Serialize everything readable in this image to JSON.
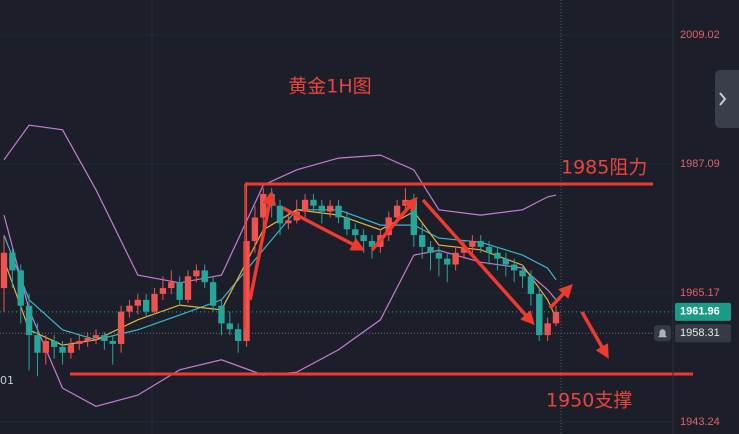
{
  "chart_data": {
    "type": "candlestick",
    "title": "黄金1H图",
    "annotations": [
      "1985阻力",
      "1950支撑"
    ],
    "edge_label": "01",
    "up_color": "#ef5350",
    "down_color": "#26a69a",
    "ylim": [
      1941.19,
      2014.97
    ],
    "yticks": [
      1943.24,
      1965.17,
      1987.09,
      2009.02
    ],
    "last_price": 1961.96,
    "crosshair_price": 1958.31,
    "candles": [
      [
        1966,
        1975,
        1962,
        1972
      ],
      [
        1972,
        1973,
        1966,
        1969
      ],
      [
        1969,
        1970,
        1960,
        1963
      ],
      [
        1963,
        1965,
        1952,
        1958
      ],
      [
        1958,
        1960,
        1951,
        1955
      ],
      [
        1955,
        1958,
        1953,
        1957
      ],
      [
        1957,
        1958,
        1954,
        1956
      ],
      [
        1956,
        1957,
        1953,
        1955
      ],
      [
        1955,
        1957.5,
        1954,
        1956.5
      ],
      [
        1956.5,
        1958,
        1955.5,
        1957
      ],
      [
        1957,
        1958.5,
        1956,
        1957.5
      ],
      [
        1957.5,
        1959,
        1956.5,
        1958
      ],
      [
        1958,
        1958.5,
        1955.5,
        1957
      ],
      [
        1957,
        1958,
        1953,
        1956.5
      ],
      [
        1956.5,
        1963,
        1955,
        1962
      ],
      [
        1962,
        1964,
        1961,
        1963
      ],
      [
        1963,
        1965,
        1961.5,
        1964
      ],
      [
        1964,
        1965,
        1961,
        1962
      ],
      [
        1962,
        1966,
        1961.5,
        1965
      ],
      [
        1965,
        1968,
        1964,
        1966
      ],
      [
        1966,
        1969,
        1965,
        1967
      ],
      [
        1967,
        1968,
        1963,
        1964
      ],
      [
        1964,
        1969,
        1963.5,
        1968
      ],
      [
        1968,
        1970,
        1967,
        1969
      ],
      [
        1969,
        1970,
        1966,
        1967
      ],
      [
        1967,
        1968,
        1962,
        1963
      ],
      [
        1963,
        1964,
        1958,
        1960
      ],
      [
        1960,
        1962,
        1958,
        1959
      ],
      [
        1959,
        1960,
        1955,
        1957
      ],
      [
        1957,
        1984,
        1956,
        1974
      ],
      [
        1974,
        1980,
        1972,
        1978
      ],
      [
        1978,
        1983,
        1976,
        1982
      ],
      [
        1982,
        1983,
        1978,
        1980
      ],
      [
        1980,
        1981,
        1975,
        1977
      ],
      [
        1977,
        1979,
        1976,
        1977.5
      ],
      [
        1977.5,
        1981,
        1977,
        1979
      ],
      [
        1979,
        1982,
        1978,
        1981
      ],
      [
        1981,
        1982,
        1979,
        1980
      ],
      [
        1980,
        1981,
        1977,
        1979
      ],
      [
        1979,
        1981,
        1978,
        1980
      ],
      [
        1980,
        1981,
        1977,
        1978
      ],
      [
        1978,
        1979,
        1975,
        1976
      ],
      [
        1976,
        1977,
        1973,
        1975
      ],
      [
        1975,
        1976,
        1972,
        1974
      ],
      [
        1974,
        1975,
        1971,
        1973
      ],
      [
        1973,
        1976,
        1972,
        1975
      ],
      [
        1975,
        1979,
        1974,
        1978
      ],
      [
        1978,
        1981,
        1977,
        1980
      ],
      [
        1980,
        1983,
        1979,
        1981
      ],
      [
        1981,
        1982,
        1973,
        1975
      ],
      [
        1975,
        1977,
        1971,
        1973
      ],
      [
        1973,
        1974,
        1969,
        1972
      ],
      [
        1972,
        1973,
        1968,
        1971
      ],
      [
        1971,
        1972,
        1967,
        1970
      ],
      [
        1970,
        1973,
        1969,
        1972
      ],
      [
        1972,
        1974,
        1971,
        1973
      ],
      [
        1973,
        1975,
        1971.5,
        1974
      ],
      [
        1974,
        1975,
        1972,
        1973
      ],
      [
        1973,
        1974,
        1970,
        1972
      ],
      [
        1972,
        1973,
        1969,
        1971
      ],
      [
        1971,
        1972,
        1968,
        1970
      ],
      [
        1970,
        1971,
        1967,
        1969
      ],
      [
        1969,
        1970,
        1966,
        1968
      ],
      [
        1968,
        1969,
        1963,
        1965
      ],
      [
        1965,
        1966,
        1957,
        1958
      ],
      [
        1958,
        1961,
        1957,
        1960
      ],
      [
        1960,
        1963,
        1959.5,
        1961.96
      ]
    ],
    "line_x": [
      0,
      3,
      7,
      11,
      16,
      21,
      26,
      31,
      35,
      40,
      45,
      49,
      52,
      57,
      62,
      65,
      66
    ],
    "lines": [
      {
        "color": "#c77ad6",
        "values": [
          1987.8,
          1993.7,
          1992.9,
          1982.7,
          1968.2,
          1966.9,
          1968.2,
          1983.5,
          1986.1,
          1988.1,
          1988.6,
          1986.1,
          1979.3,
          1978.4,
          1979.3,
          1981.5,
          1981.8
        ]
      },
      {
        "color": "#c77ad6",
        "values": [
          1978.4,
          1962.3,
          1949,
          1945.9,
          1947.8,
          1952.1,
          1953.8,
          1951.2,
          1951.7,
          1955.5,
          1960.6,
          1971.6,
          1972.4,
          1970.4,
          1969.4,
          1965.7,
          1964
        ]
      },
      {
        "color": "#3fb6c9",
        "values": [
          1975,
          1964,
          1958.9,
          1957.2,
          1958.9,
          1961.4,
          1964,
          1972.5,
          1979.3,
          1979.3,
          1976.7,
          1976.7,
          1974.5,
          1973.8,
          1971.6,
          1969.4,
          1967.4
        ]
      },
      {
        "color": "#e3b341",
        "values": [
          1970.8,
          1958.9,
          1956.3,
          1957.2,
          1960.6,
          1963.1,
          1962.3,
          1975.9,
          1979.3,
          1978.4,
          1975.9,
          1979,
          1973.3,
          1972.5,
          1969.9,
          1964,
          1960.9
        ]
      }
    ]
  }
}
